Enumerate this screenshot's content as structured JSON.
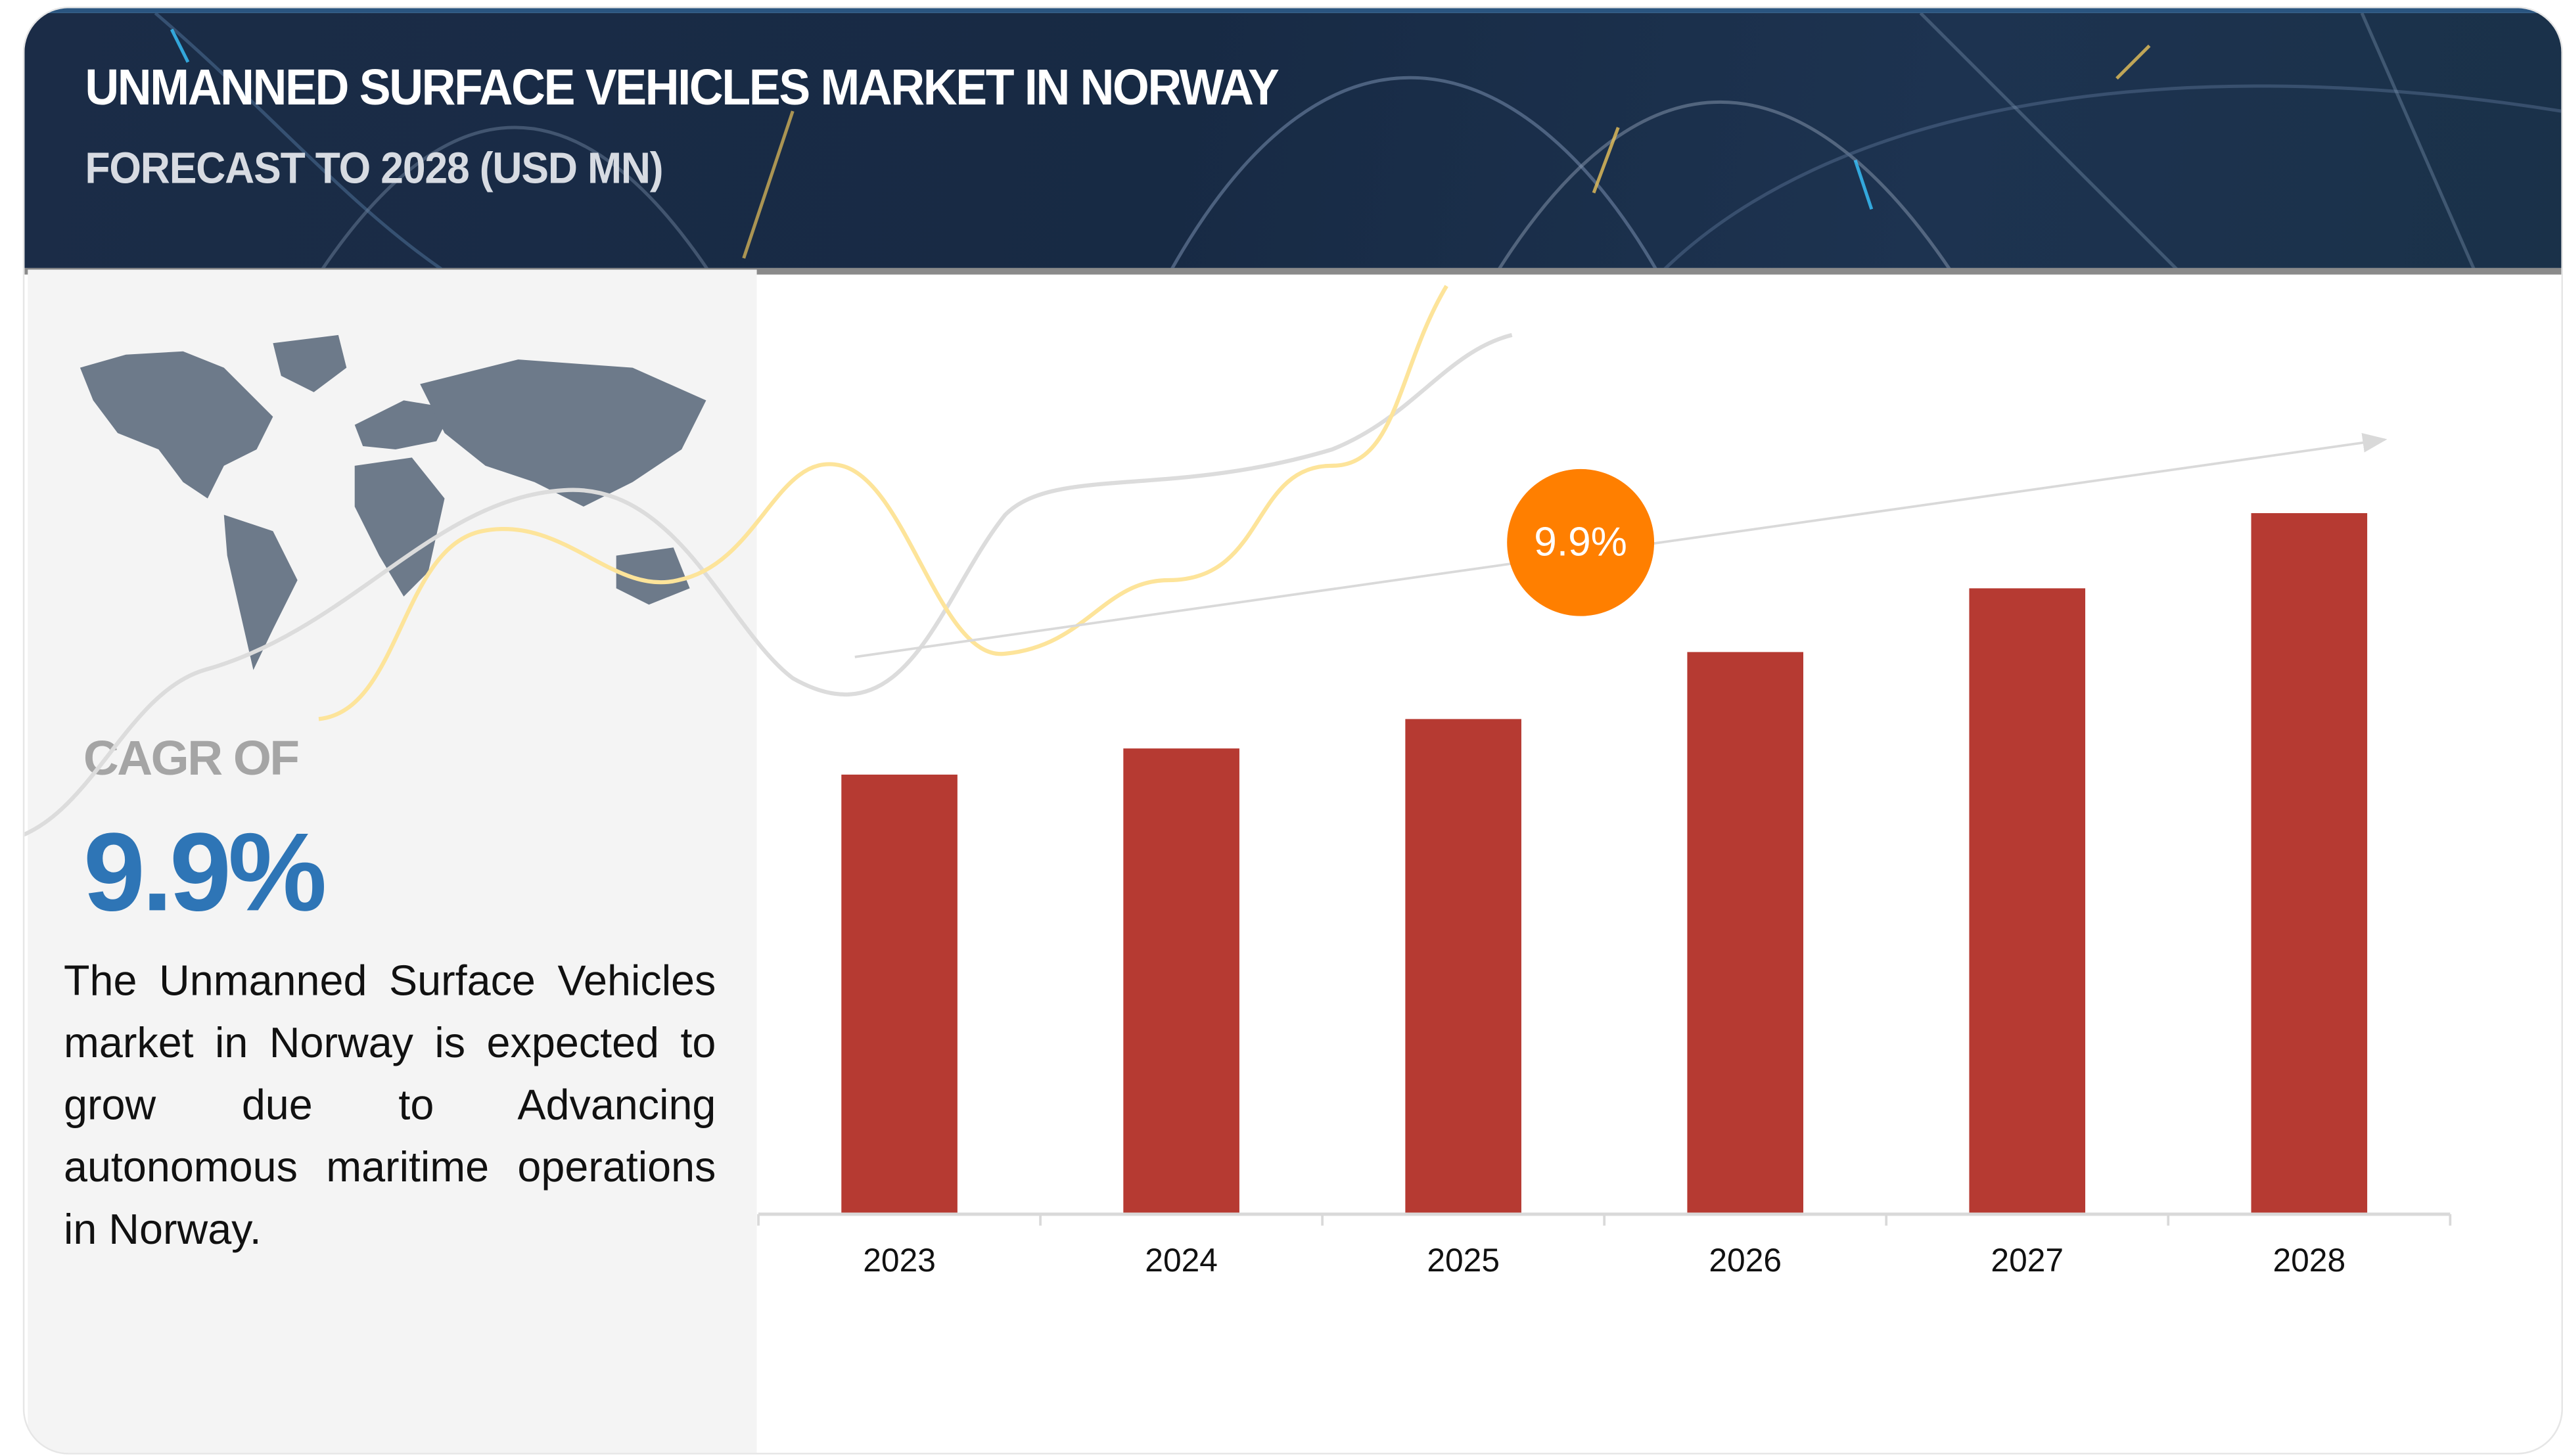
{
  "header": {
    "title": "UNMANNED SURFACE VEHICLES MARKET IN NORWAY",
    "subtitle": "FORECAST TO 2028 (USD MN)"
  },
  "summary": {
    "cagr_label": "CAGR OF",
    "cagr_value": "9.9%",
    "description": "The Unmanned Surface Vehicles market in Norway is expected to grow due to Advancing autonomous maritime operations in Norway."
  },
  "chart_data": {
    "type": "bar",
    "title": "UNMANNED SURFACE VEHICLES MARKET IN NORWAY",
    "subtitle": "FORECAST TO 2028 (USD MN)",
    "categories": [
      "2023",
      "2024",
      "2025",
      "2026",
      "2027",
      "2028"
    ],
    "values": [
      268,
      284,
      302,
      343,
      382,
      428
    ],
    "values_note_unitless_relative": true,
    "xlabel": "",
    "ylabel": "",
    "ylim": [
      0,
      460
    ],
    "grid": false,
    "annotation": "9.9%",
    "bar_color": "#b63a32",
    "annotation_color": "#ff7f00"
  }
}
